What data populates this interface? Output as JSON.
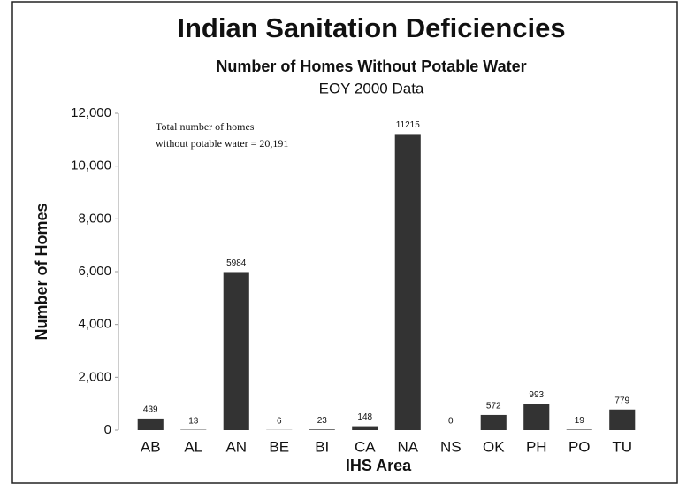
{
  "chart_data": {
    "type": "bar",
    "title": "Indian Sanitation Deficiencies",
    "subtitle": "Number of Homes Without Potable Water",
    "subtitle2": "EOY 2000 Data",
    "annotation": [
      "Total number of homes",
      "without potable water = 20,191"
    ],
    "xlabel": "IHS Area",
    "ylabel": "Number of Homes",
    "categories": [
      "AB",
      "AL",
      "AN",
      "BE",
      "BI",
      "CA",
      "NA",
      "NS",
      "OK",
      "PH",
      "PO",
      "TU"
    ],
    "values": [
      439,
      13,
      5984,
      6,
      23,
      148,
      11215,
      0,
      572,
      993,
      19,
      779
    ],
    "color": "#333333",
    "ylim": [
      0,
      12000
    ],
    "yticks": [
      0,
      {
        "value": 2000,
        "label": "2,000"
      },
      {
        "value": 4000,
        "label": "4,000"
      },
      {
        "value": 6000,
        "label": "6,000"
      },
      {
        "value": 8000,
        "label": "8,000"
      },
      {
        "value": 10000,
        "label": "10,000"
      },
      {
        "value": 12000,
        "label": "12,000"
      }
    ],
    "grid": false
  }
}
